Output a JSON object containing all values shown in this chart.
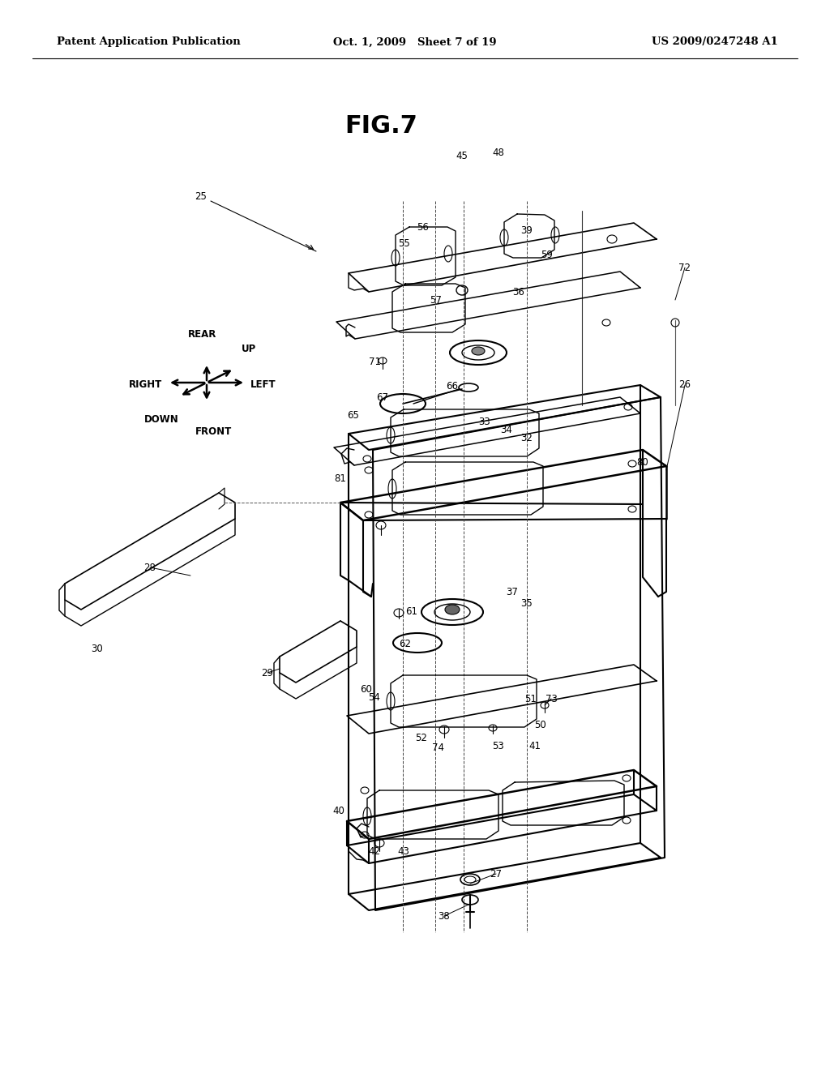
{
  "header_left": "Patent Application Publication",
  "header_center": "Oct. 1, 2009   Sheet 7 of 19",
  "header_right": "US 2009/0247248 A1",
  "fig_title": "FIG.7",
  "background_color": "#ffffff",
  "text_color": "#000000",
  "line_color": "#000000"
}
